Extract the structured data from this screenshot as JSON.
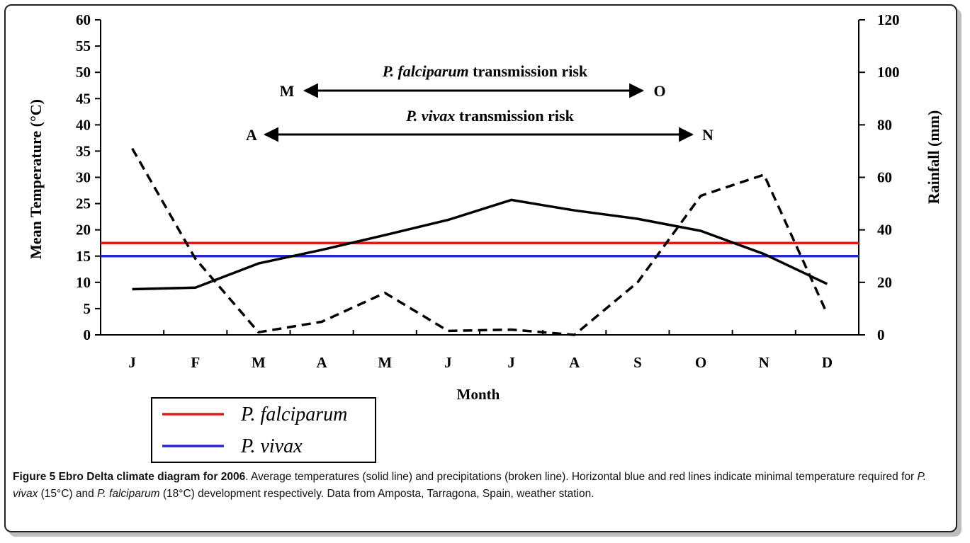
{
  "chart_data": {
    "type": "line",
    "categories": [
      "J",
      "F",
      "M",
      "A",
      "M",
      "J",
      "J",
      "A",
      "S",
      "O",
      "N",
      "D"
    ],
    "xlabel": "Month",
    "ylabel": "Mean Temperature (°C)",
    "y2label": "Rainfall (mm)",
    "ylim": [
      0,
      60
    ],
    "y2lim": [
      0,
      120
    ],
    "yticks": [
      "0",
      "5",
      "10",
      "15",
      "20",
      "25",
      "30",
      "35",
      "40",
      "45",
      "50",
      "55",
      "60"
    ],
    "y2ticks": [
      "0",
      "20",
      "40",
      "60",
      "80",
      "100",
      "120"
    ],
    "series": [
      {
        "name": "temperature",
        "axis": "left",
        "style": "solid",
        "color": "#000000",
        "values": [
          8.7,
          9.0,
          13.6,
          16.2,
          19.0,
          21.9,
          25.7,
          23.7,
          22.1,
          19.8,
          15.4,
          9.7
        ]
      },
      {
        "name": "rainfall",
        "axis": "right",
        "style": "dashed",
        "color": "#000000",
        "values": [
          71,
          29,
          1,
          5,
          16,
          1.5,
          2,
          0,
          20,
          53,
          61,
          8
        ]
      }
    ],
    "thresholds": [
      {
        "label": "P. falciparum",
        "value": 17.5,
        "color": "#e0191b"
      },
      {
        "label": "P. vivax",
        "value": 15,
        "color": "#2626d4"
      }
    ],
    "annotations": [
      {
        "title_italic": "P. falciparum",
        "title_rest": " transmission risk",
        "start_label": "M",
        "end_label": "O",
        "from": 2,
        "to": 9
      },
      {
        "title_italic": "P. vivax",
        "title_rest": " transmission risk",
        "start_label": "A",
        "end_label": "N",
        "from": 3,
        "to": 10
      }
    ],
    "legend": {
      "placement": "bottom-left",
      "items": [
        {
          "label": "P. falciparum",
          "color": "#e0191b"
        },
        {
          "label": "P. vivax",
          "color": "#2626d4"
        }
      ]
    }
  },
  "caption": {
    "title": "Figure 5 Ebro Delta climate diagram for 2006",
    "t1": ". Average temperatures (solid line) and precipitations (broken line). Horizontal blue and red lines indicate minimal temperature required for ",
    "i1": "P. vivax",
    "t2": " (15°C) and ",
    "i2": "P. falciparum",
    "t3": " (18°C) development respectively. Data from Amposta, Tarragona, Spain, weather station."
  }
}
